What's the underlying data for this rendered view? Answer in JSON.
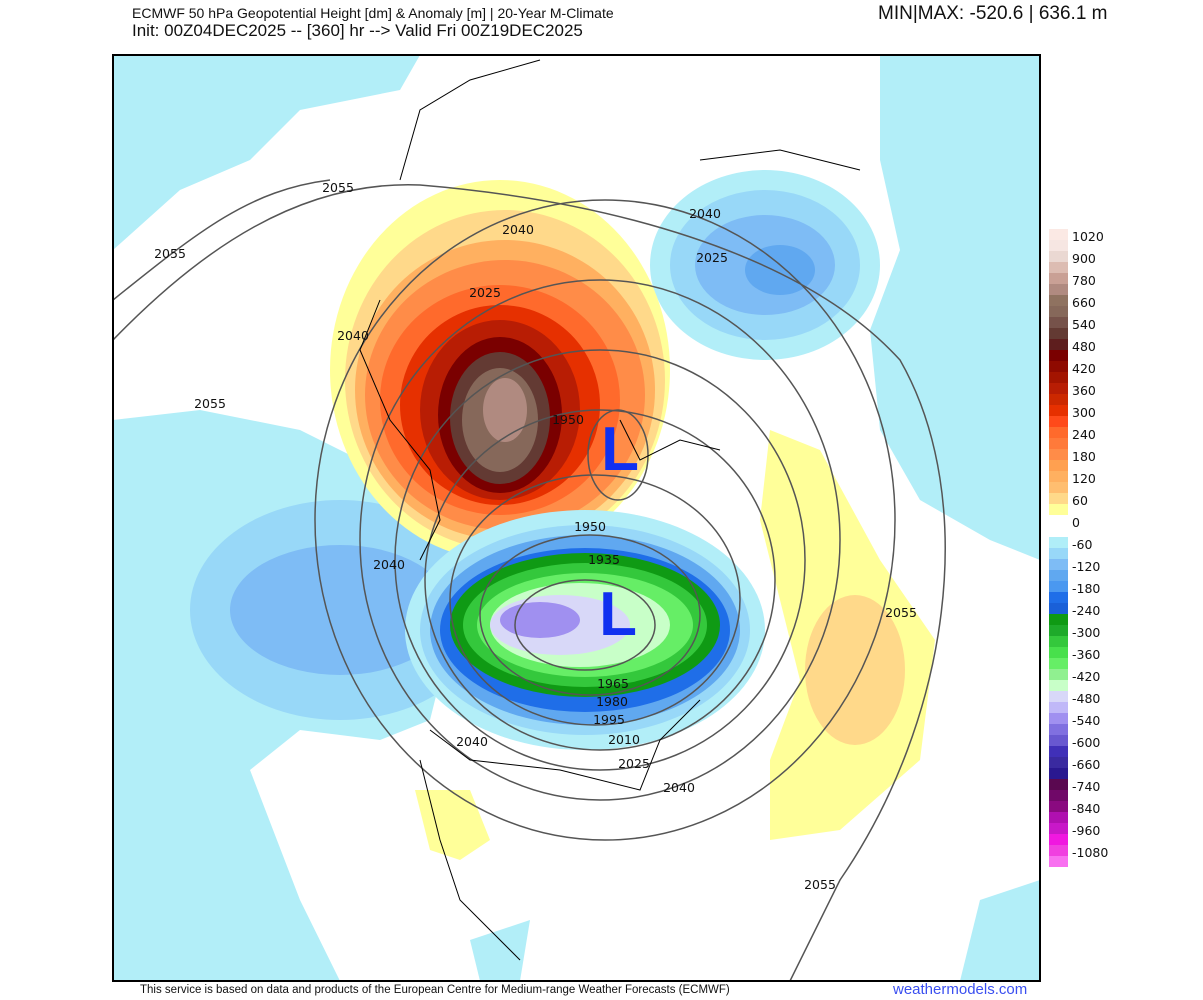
{
  "header": {
    "title": "ECMWF 50 hPa Geopotential Height [dm] & Anomaly [m] | 20-Year M-Climate",
    "subtitle": "Init: 00Z04DEC2025 -- [360] hr --> Valid Fri 00Z19DEC2025",
    "minmax": "MIN|MAX: -520.6 | 636.1 m"
  },
  "map": {
    "low_centers": [
      "L",
      "L"
    ],
    "contour_labels": [
      "2055",
      "2055",
      "2055",
      "2040",
      "2040",
      "2025",
      "2040",
      "2025",
      "1950",
      "1950",
      "1935",
      "1965",
      "1980",
      "1995",
      "2010",
      "2025",
      "2040",
      "2040",
      "2040",
      "2055",
      "2055"
    ],
    "colors": {
      "low_label": "#1030f0",
      "contour": "#555555",
      "coast": "#000000"
    }
  },
  "colorbar": {
    "labels": [
      "1020",
      "900",
      "780",
      "660",
      "540",
      "480",
      "420",
      "360",
      "300",
      "240",
      "180",
      "120",
      "60",
      "0",
      "-60",
      "-120",
      "-180",
      "-240",
      "-300",
      "-360",
      "-420",
      "-480",
      "-540",
      "-600",
      "-660",
      "-740",
      "-840",
      "-960",
      "-1080"
    ],
    "colors": [
      "#fbe9e4",
      "#f6e6e2",
      "#ead8d2",
      "#dcbcb2",
      "#c9a095",
      "#b08a80",
      "#8f7260",
      "#86685a",
      "#76524a",
      "#633a33",
      "#5e1e1e",
      "#7a0000",
      "#8f0a00",
      "#a31400",
      "#b81d04",
      "#cc2800",
      "#e63000",
      "#ff4a1a",
      "#ff6a2c",
      "#ff7a3a",
      "#ff8c48",
      "#ffa050",
      "#ffb060",
      "#ffbe70",
      "#ffd98a",
      "#ffff99",
      "#ffffff",
      "#ffffff",
      "#b0eef8",
      "#98d8f8",
      "#7ebcf5",
      "#60a8f0",
      "#4a98f0",
      "#1f6ee8",
      "#1a60d8",
      "#0f9a14",
      "#1eaa2a",
      "#34c83c",
      "#48e04c",
      "#66ee66",
      "#90f090",
      "#c8ffc8",
      "#d8d8f8",
      "#c0b8f8",
      "#a090f0",
      "#8070e0",
      "#6858d0",
      "#4030b8",
      "#3a2aa0",
      "#2a1890",
      "#5a0850",
      "#700868",
      "#8a0a80",
      "#b010b0",
      "#c818c8",
      "#f018e0",
      "#f040e0",
      "#f870f0"
    ]
  },
  "footer": {
    "credit": "This service is based on data and products of the European Centre for Medium-range Weather Forecasts (ECMWF)",
    "brand": "weathermodels.com"
  }
}
